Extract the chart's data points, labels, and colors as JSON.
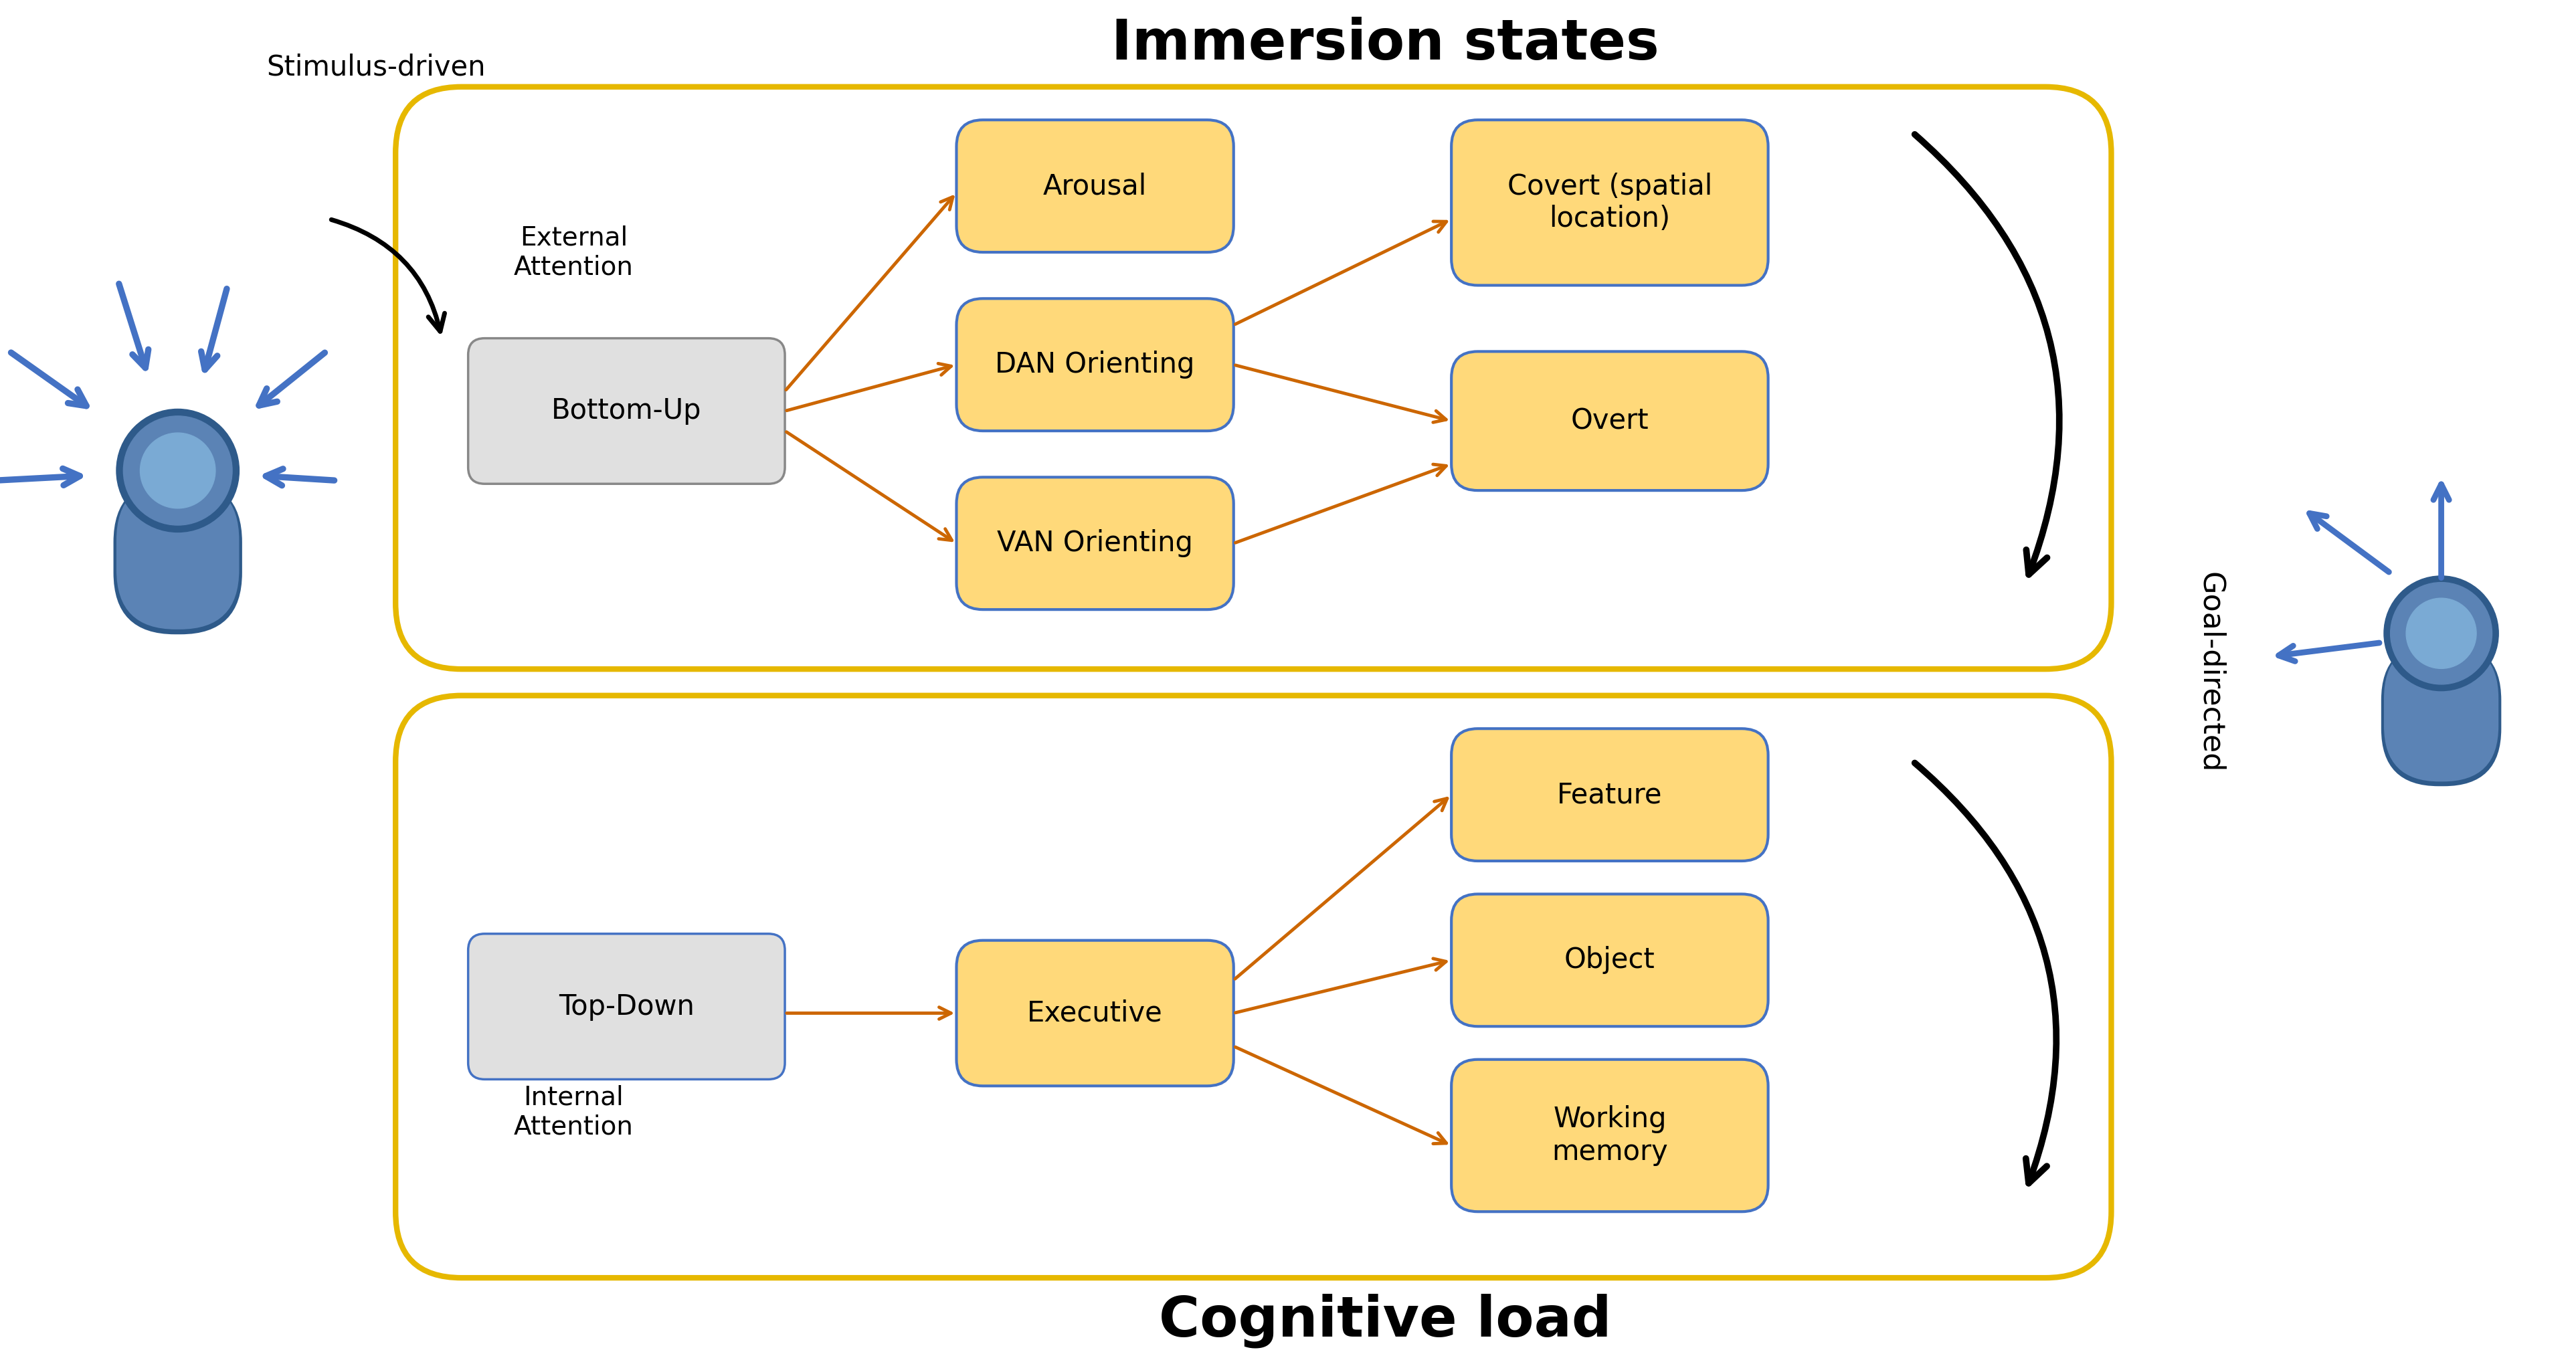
{
  "title_top": "Immersion states",
  "title_bottom": "Cognitive load",
  "label_stimulus": "Stimulus-driven",
  "label_goal": "Goal-directed",
  "label_external": "External\nAttention",
  "label_internal": "Internal\nAttention",
  "box_bottom_up": "Bottom-Up",
  "box_top_down": "Top-Down",
  "box_arousal": "Arousal",
  "box_dan": "DAN Orienting",
  "box_van": "VAN Orienting",
  "box_executive": "Executive",
  "box_covert": "Covert (spatial\nlocation)",
  "box_overt": "Overt",
  "box_feature": "Feature",
  "box_object": "Object",
  "box_working": "Working\nmemory",
  "color_outer_border": "#E6B800",
  "color_orange_fill": "#FFD97A",
  "color_orange_border": "#4472C4",
  "color_gray_fill_top": "#E0E0E0",
  "color_gray_fill_bot": "#D0D8E8",
  "color_gray_border": "#888888",
  "color_blue_border": "#4472C4",
  "color_arrow": "#CC6600",
  "color_person_light": "#5B83B5",
  "color_person_dark": "#2E5A8A",
  "color_person_head_inner": "#7AAAD4",
  "color_blue_arrow": "#4472C4",
  "bg_color": "#FFFFFF"
}
